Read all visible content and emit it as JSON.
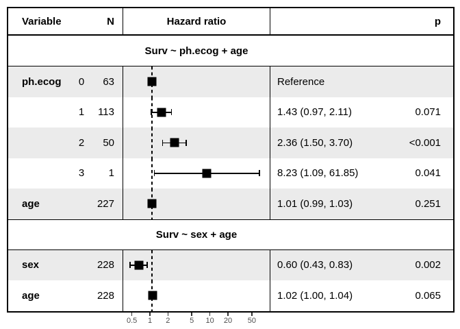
{
  "colors": {
    "shaded_row": "#ebebeb",
    "plain_row": "#ffffff",
    "border": "#000000",
    "marker": "#000000",
    "tick_label": "#4d4d4d"
  },
  "table": {
    "header": {
      "variable": "Variable",
      "n": "N",
      "hazard_ratio": "Hazard ratio",
      "p": "p"
    }
  },
  "rows": [
    {
      "kind": "section",
      "title": "Surv ~ ph.ecog + age"
    },
    {
      "kind": "data",
      "variable": "ph.ecog",
      "level": "0",
      "n": "63",
      "hr": 1.0,
      "lo": null,
      "hi": null,
      "estimate": "Reference",
      "p": "",
      "shaded": true
    },
    {
      "kind": "data",
      "variable": "",
      "level": "1",
      "n": "113",
      "hr": 1.43,
      "lo": 0.97,
      "hi": 2.11,
      "estimate": "1.43 (0.97, 2.11)",
      "p": "0.071",
      "shaded": false
    },
    {
      "kind": "data",
      "variable": "",
      "level": "2",
      "n": "50",
      "hr": 2.36,
      "lo": 1.5,
      "hi": 3.7,
      "estimate": "2.36 (1.50, 3.70)",
      "p": "<0.001",
      "shaded": true
    },
    {
      "kind": "data",
      "variable": "",
      "level": "3",
      "n": "1",
      "hr": 8.23,
      "lo": 1.09,
      "hi": 61.85,
      "estimate": "8.23 (1.09, 61.85)",
      "p": "0.041",
      "shaded": false
    },
    {
      "kind": "data",
      "variable": "age",
      "level": "",
      "n": "227",
      "hr": 1.01,
      "lo": 0.99,
      "hi": 1.03,
      "estimate": "1.01 (0.99, 1.03)",
      "p": "0.251",
      "shaded": true
    },
    {
      "kind": "section",
      "title": "Surv ~ sex + age"
    },
    {
      "kind": "data",
      "variable": "sex",
      "level": "",
      "n": "228",
      "hr": 0.6,
      "lo": 0.43,
      "hi": 0.83,
      "estimate": "0.60 (0.43, 0.83)",
      "p": "0.002",
      "shaded": true
    },
    {
      "kind": "data",
      "variable": "age",
      "level": "",
      "n": "228",
      "hr": 1.02,
      "lo": 1.0,
      "hi": 1.04,
      "estimate": "1.02 (1.00, 1.04)",
      "p": "0.065",
      "shaded": false
    }
  ],
  "axis": {
    "ticks": [
      0.5,
      1,
      2,
      5,
      10,
      20,
      50
    ],
    "tick_labels": [
      "0.5",
      "1",
      "2",
      "5",
      "10",
      "20",
      "50"
    ],
    "scale": "log10"
  },
  "chart_data": {
    "type": "scatter",
    "subtype": "forest-plot",
    "title": "",
    "xlabel": "Hazard ratio",
    "xscale": "log10",
    "xticks": [
      0.5,
      1,
      2,
      5,
      10,
      20,
      50
    ],
    "xlim": [
      0.33,
      85
    ],
    "reference_line_x": 1,
    "grid": false,
    "groups": [
      {
        "model": "Surv ~ ph.ecog + age",
        "points": [
          {
            "label": "ph.ecog 0",
            "n": 63,
            "hr": 1.0,
            "ci_low": null,
            "ci_high": null,
            "annotation": "Reference",
            "p": null
          },
          {
            "label": "ph.ecog 1",
            "n": 113,
            "hr": 1.43,
            "ci_low": 0.97,
            "ci_high": 2.11,
            "annotation": "1.43 (0.97, 2.11)",
            "p": "0.071"
          },
          {
            "label": "ph.ecog 2",
            "n": 50,
            "hr": 2.36,
            "ci_low": 1.5,
            "ci_high": 3.7,
            "annotation": "2.36 (1.50, 3.70)",
            "p": "<0.001"
          },
          {
            "label": "ph.ecog 3",
            "n": 1,
            "hr": 8.23,
            "ci_low": 1.09,
            "ci_high": 61.85,
            "annotation": "8.23 (1.09, 61.85)",
            "p": "0.041"
          },
          {
            "label": "age",
            "n": 227,
            "hr": 1.01,
            "ci_low": 0.99,
            "ci_high": 1.03,
            "annotation": "1.01 (0.99, 1.03)",
            "p": "0.251"
          }
        ]
      },
      {
        "model": "Surv ~ sex + age",
        "points": [
          {
            "label": "sex",
            "n": 228,
            "hr": 0.6,
            "ci_low": 0.43,
            "ci_high": 0.83,
            "annotation": "0.60 (0.43, 0.83)",
            "p": "0.002"
          },
          {
            "label": "age",
            "n": 228,
            "hr": 1.02,
            "ci_low": 1.0,
            "ci_high": 1.04,
            "annotation": "1.02 (1.00, 1.04)",
            "p": "0.065"
          }
        ]
      }
    ]
  }
}
